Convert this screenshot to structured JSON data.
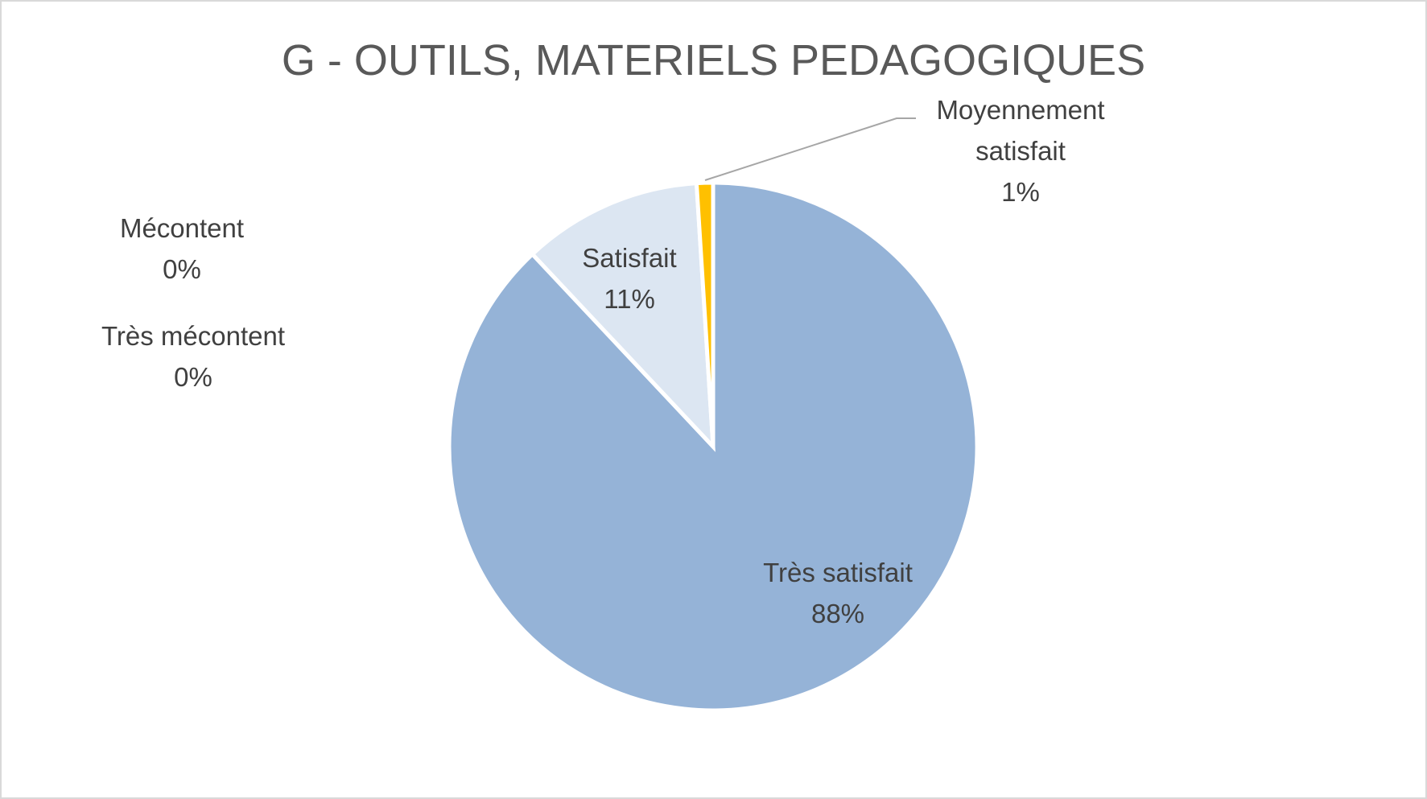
{
  "chart_data": {
    "type": "pie",
    "title": "G - OUTILS, MATERIELS PEDAGOGIQUES",
    "categories": [
      "Très satisfait",
      "Satisfait",
      "Moyennement satisfait",
      "Mécontent",
      "Très mécontent"
    ],
    "values": [
      88,
      11,
      1,
      0,
      0
    ],
    "value_labels": [
      "88%",
      "11%",
      "1%",
      "0%",
      "0%"
    ],
    "colors": [
      "#95b3d7",
      "#dce6f2",
      "#ffc000",
      "#4f81bd",
      "#c0504d"
    ]
  }
}
